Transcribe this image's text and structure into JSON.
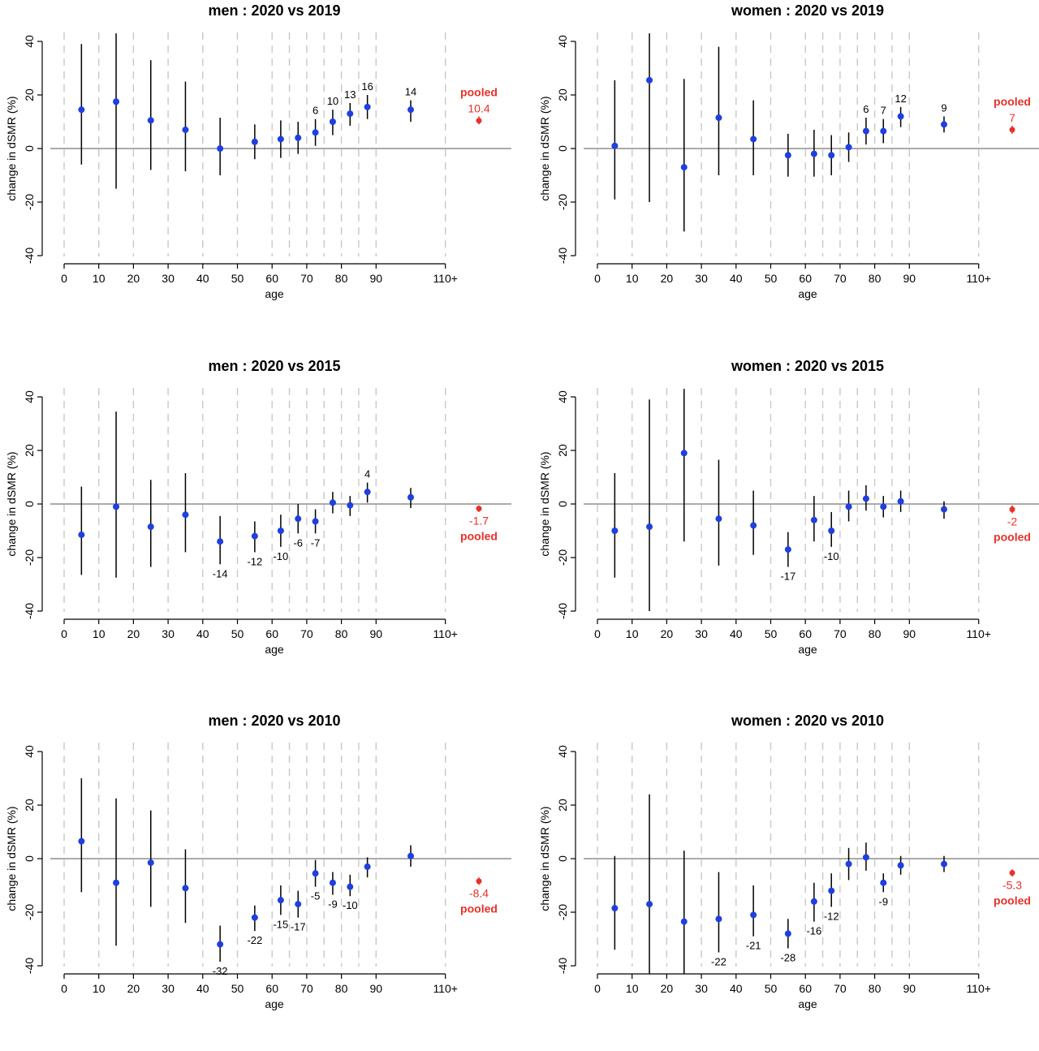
{
  "chart_data": [
    {
      "type": "scatter",
      "title": "men : 2020 vs 2019",
      "xlabel": "age",
      "ylabel": "change in dSMR (%)",
      "xlim": [
        0,
        110
      ],
      "ylim": [
        -40,
        40
      ],
      "x_tick_labels": [
        "0",
        "10",
        "20",
        "30",
        "40",
        "50",
        "60",
        "70",
        "80",
        "90",
        "110+"
      ],
      "y_tick_labels": [
        "-40",
        "-20",
        "0",
        "20",
        "40"
      ],
      "points": [
        {
          "x": 5,
          "y": 14.5,
          "lo": -6,
          "hi": 39,
          "label": ""
        },
        {
          "x": 15,
          "y": 17.5,
          "lo": -15,
          "hi": 43,
          "label": ""
        },
        {
          "x": 25,
          "y": 10.5,
          "lo": -8,
          "hi": 33,
          "label": ""
        },
        {
          "x": 35,
          "y": 7,
          "lo": -8.5,
          "hi": 25,
          "label": ""
        },
        {
          "x": 45,
          "y": 0,
          "lo": -10,
          "hi": 11.5,
          "label": ""
        },
        {
          "x": 55,
          "y": 2.5,
          "lo": -4,
          "hi": 9,
          "label": ""
        },
        {
          "x": 62.5,
          "y": 3.5,
          "lo": -3.5,
          "hi": 10.5,
          "label": ""
        },
        {
          "x": 67.5,
          "y": 4,
          "lo": -2,
          "hi": 10,
          "label": ""
        },
        {
          "x": 72.5,
          "y": 6,
          "lo": 1,
          "hi": 11,
          "label": "6"
        },
        {
          "x": 77.5,
          "y": 10,
          "lo": 5,
          "hi": 14.5,
          "label": "10"
        },
        {
          "x": 82.5,
          "y": 13,
          "lo": 8.5,
          "hi": 17,
          "label": "13"
        },
        {
          "x": 87.5,
          "y": 15.5,
          "lo": 11,
          "hi": 20,
          "label": "16"
        },
        {
          "x": 100,
          "y": 14.5,
          "lo": 10,
          "hi": 18,
          "label": "14"
        }
      ],
      "pooled": {
        "value": 10.4,
        "lo": 9,
        "hi": 12,
        "value_label": "10.4",
        "word": "pooled",
        "order": "word-first"
      }
    },
    {
      "type": "scatter",
      "title": "women : 2020 vs 2019",
      "xlabel": "age",
      "ylabel": "change in dSMR (%)",
      "xlim": [
        0,
        110
      ],
      "ylim": [
        -40,
        40
      ],
      "x_tick_labels": [
        "0",
        "10",
        "20",
        "30",
        "40",
        "50",
        "60",
        "70",
        "80",
        "90",
        "110+"
      ],
      "y_tick_labels": [
        "-40",
        "-20",
        "0",
        "20",
        "40"
      ],
      "points": [
        {
          "x": 5,
          "y": 1,
          "lo": -19,
          "hi": 25.5,
          "label": ""
        },
        {
          "x": 15,
          "y": 25.5,
          "lo": -20,
          "hi": 43,
          "label": ""
        },
        {
          "x": 25,
          "y": -7,
          "lo": -31,
          "hi": 26,
          "label": ""
        },
        {
          "x": 35,
          "y": 11.5,
          "lo": -10,
          "hi": 38,
          "label": ""
        },
        {
          "x": 45,
          "y": 3.5,
          "lo": -10,
          "hi": 18,
          "label": ""
        },
        {
          "x": 55,
          "y": -2.5,
          "lo": -10.5,
          "hi": 5.5,
          "label": ""
        },
        {
          "x": 62.5,
          "y": -2,
          "lo": -10.5,
          "hi": 7,
          "label": ""
        },
        {
          "x": 67.5,
          "y": -2.5,
          "lo": -10,
          "hi": 5,
          "label": ""
        },
        {
          "x": 72.5,
          "y": 0.5,
          "lo": -5,
          "hi": 6,
          "label": ""
        },
        {
          "x": 77.5,
          "y": 6.5,
          "lo": 1.5,
          "hi": 11.5,
          "label": "6"
        },
        {
          "x": 82.5,
          "y": 6.5,
          "lo": 2,
          "hi": 11,
          "label": "7"
        },
        {
          "x": 87.5,
          "y": 12,
          "lo": 8,
          "hi": 15.5,
          "label": "12"
        },
        {
          "x": 100,
          "y": 9,
          "lo": 6,
          "hi": 12,
          "label": "9"
        }
      ],
      "pooled": {
        "value": 7,
        "lo": 5.5,
        "hi": 8.5,
        "value_label": "7",
        "word": "pooled",
        "order": "word-first"
      }
    },
    {
      "type": "scatter",
      "title": "men : 2020 vs 2015",
      "xlabel": "age",
      "ylabel": "change in dSMR (%)",
      "xlim": [
        0,
        110
      ],
      "ylim": [
        -40,
        40
      ],
      "x_tick_labels": [
        "0",
        "10",
        "20",
        "30",
        "40",
        "50",
        "60",
        "70",
        "80",
        "90",
        "110+"
      ],
      "y_tick_labels": [
        "-40",
        "-20",
        "0",
        "20",
        "40"
      ],
      "points": [
        {
          "x": 5,
          "y": -11.5,
          "lo": -26.5,
          "hi": 6.5,
          "label": ""
        },
        {
          "x": 15,
          "y": -1,
          "lo": -27.5,
          "hi": 34.5,
          "label": ""
        },
        {
          "x": 25,
          "y": -8.5,
          "lo": -23.5,
          "hi": 9,
          "label": ""
        },
        {
          "x": 35,
          "y": -4,
          "lo": -18,
          "hi": 11.5,
          "label": ""
        },
        {
          "x": 45,
          "y": -14,
          "lo": -22.5,
          "hi": -4.5,
          "label": "-14"
        },
        {
          "x": 55,
          "y": -12,
          "lo": -18,
          "hi": -6.5,
          "label": "-12"
        },
        {
          "x": 62.5,
          "y": -10,
          "lo": -16,
          "hi": -4,
          "label": "-10"
        },
        {
          "x": 67.5,
          "y": -5.5,
          "lo": -11,
          "hi": 0,
          "label": "-6"
        },
        {
          "x": 72.5,
          "y": -6.5,
          "lo": -11,
          "hi": -2,
          "label": "-7"
        },
        {
          "x": 77.5,
          "y": 0.5,
          "lo": -3.5,
          "hi": 4.5,
          "label": ""
        },
        {
          "x": 82.5,
          "y": -0.5,
          "lo": -4.5,
          "hi": 3,
          "label": ""
        },
        {
          "x": 87.5,
          "y": 4.5,
          "lo": 0.5,
          "hi": 8,
          "label": "4"
        },
        {
          "x": 100,
          "y": 2.5,
          "lo": -1.5,
          "hi": 6,
          "label": ""
        }
      ],
      "pooled": {
        "value": -1.7,
        "lo": -3,
        "hi": -0.5,
        "value_label": "-1.7",
        "word": "pooled",
        "order": "value-first"
      }
    },
    {
      "type": "scatter",
      "title": "women : 2020 vs 2015",
      "xlabel": "age",
      "ylabel": "change in dSMR (%)",
      "xlim": [
        0,
        110
      ],
      "ylim": [
        -40,
        40
      ],
      "x_tick_labels": [
        "0",
        "10",
        "20",
        "30",
        "40",
        "50",
        "60",
        "70",
        "80",
        "90",
        "110+"
      ],
      "y_tick_labels": [
        "-40",
        "-20",
        "0",
        "20",
        "40"
      ],
      "points": [
        {
          "x": 5,
          "y": -10,
          "lo": -27.5,
          "hi": 11.5,
          "label": ""
        },
        {
          "x": 15,
          "y": -8.5,
          "lo": -40,
          "hi": 39,
          "label": ""
        },
        {
          "x": 25,
          "y": 19,
          "lo": -14,
          "hi": 43,
          "label": ""
        },
        {
          "x": 35,
          "y": -5.5,
          "lo": -23,
          "hi": 16.5,
          "label": ""
        },
        {
          "x": 45,
          "y": -8,
          "lo": -19,
          "hi": 5,
          "label": ""
        },
        {
          "x": 55,
          "y": -17,
          "lo": -23.5,
          "hi": -10.5,
          "label": "-17"
        },
        {
          "x": 62.5,
          "y": -6,
          "lo": -14,
          "hi": 3,
          "label": ""
        },
        {
          "x": 67.5,
          "y": -10,
          "lo": -16,
          "hi": -3,
          "label": "-10"
        },
        {
          "x": 72.5,
          "y": -1,
          "lo": -6.5,
          "hi": 5,
          "label": ""
        },
        {
          "x": 77.5,
          "y": 2,
          "lo": -2.5,
          "hi": 7,
          "label": ""
        },
        {
          "x": 82.5,
          "y": -1,
          "lo": -5,
          "hi": 3,
          "label": ""
        },
        {
          "x": 87.5,
          "y": 1,
          "lo": -3,
          "hi": 5,
          "label": ""
        },
        {
          "x": 100,
          "y": -2,
          "lo": -5.5,
          "hi": 1,
          "label": ""
        }
      ],
      "pooled": {
        "value": -2,
        "lo": -3.5,
        "hi": -0.5,
        "value_label": "-2",
        "word": "pooled",
        "order": "value-first"
      }
    },
    {
      "type": "scatter",
      "title": "men : 2020 vs 2010",
      "xlabel": "age",
      "ylabel": "change in dSMR (%)",
      "xlim": [
        0,
        110
      ],
      "ylim": [
        -40,
        40
      ],
      "x_tick_labels": [
        "0",
        "10",
        "20",
        "30",
        "40",
        "50",
        "60",
        "70",
        "80",
        "90",
        "110+"
      ],
      "y_tick_labels": [
        "-40",
        "-20",
        "0",
        "20",
        "40"
      ],
      "points": [
        {
          "x": 5,
          "y": 6.5,
          "lo": -12.5,
          "hi": 30,
          "label": ""
        },
        {
          "x": 15,
          "y": -9,
          "lo": -32.5,
          "hi": 22.5,
          "label": ""
        },
        {
          "x": 25,
          "y": -1.5,
          "lo": -18,
          "hi": 18,
          "label": ""
        },
        {
          "x": 35,
          "y": -11,
          "lo": -24,
          "hi": 3.5,
          "label": ""
        },
        {
          "x": 45,
          "y": -32,
          "lo": -38.5,
          "hi": -25,
          "label": "-32"
        },
        {
          "x": 55,
          "y": -22,
          "lo": -27,
          "hi": -17.5,
          "label": "-22"
        },
        {
          "x": 62.5,
          "y": -15.5,
          "lo": -21,
          "hi": -10,
          "label": "-15"
        },
        {
          "x": 67.5,
          "y": -17,
          "lo": -22,
          "hi": -12,
          "label": "-17"
        },
        {
          "x": 72.5,
          "y": -5.5,
          "lo": -10.5,
          "hi": -0.5,
          "label": "-5"
        },
        {
          "x": 77.5,
          "y": -9,
          "lo": -13.5,
          "hi": -5,
          "label": "-9"
        },
        {
          "x": 82.5,
          "y": -10.5,
          "lo": -14,
          "hi": -6,
          "label": "-10"
        },
        {
          "x": 87.5,
          "y": -3,
          "lo": -7,
          "hi": 0.5,
          "label": ""
        },
        {
          "x": 100,
          "y": 1,
          "lo": -3,
          "hi": 5,
          "label": ""
        }
      ],
      "pooled": {
        "value": -8.4,
        "lo": -9.8,
        "hi": -7,
        "value_label": "-8.4",
        "word": "pooled",
        "order": "value-first"
      }
    },
    {
      "type": "scatter",
      "title": "women : 2020 vs 2010",
      "xlabel": "age",
      "ylabel": "change in dSMR (%)",
      "xlim": [
        0,
        110
      ],
      "ylim": [
        -40,
        40
      ],
      "x_tick_labels": [
        "0",
        "10",
        "20",
        "30",
        "40",
        "50",
        "60",
        "70",
        "80",
        "90",
        "110+"
      ],
      "y_tick_labels": [
        "-40",
        "-20",
        "0",
        "20",
        "40"
      ],
      "points": [
        {
          "x": 5,
          "y": -18.5,
          "lo": -34,
          "hi": 1,
          "label": ""
        },
        {
          "x": 15,
          "y": -17,
          "lo": -43,
          "hi": 24,
          "label": ""
        },
        {
          "x": 25,
          "y": -23.5,
          "lo": -43,
          "hi": 3,
          "label": ""
        },
        {
          "x": 35,
          "y": -22.5,
          "lo": -35,
          "hi": -5,
          "label": "-22"
        },
        {
          "x": 45,
          "y": -21,
          "lo": -29,
          "hi": -10,
          "label": "-21"
        },
        {
          "x": 55,
          "y": -28,
          "lo": -33.5,
          "hi": -22.5,
          "label": "-28"
        },
        {
          "x": 62.5,
          "y": -16,
          "lo": -23.5,
          "hi": -9,
          "label": "-16"
        },
        {
          "x": 67.5,
          "y": -12,
          "lo": -18,
          "hi": -5.5,
          "label": "-12"
        },
        {
          "x": 72.5,
          "y": -2,
          "lo": -8,
          "hi": 4,
          "label": ""
        },
        {
          "x": 77.5,
          "y": 0.5,
          "lo": -4.5,
          "hi": 6,
          "label": ""
        },
        {
          "x": 82.5,
          "y": -9,
          "lo": -12.5,
          "hi": -5.5,
          "label": "-9"
        },
        {
          "x": 87.5,
          "y": -2.5,
          "lo": -6,
          "hi": 1,
          "label": ""
        },
        {
          "x": 100,
          "y": -2,
          "lo": -5,
          "hi": 1,
          "label": ""
        }
      ],
      "pooled": {
        "value": -5.3,
        "lo": -6.7,
        "hi": -4,
        "value_label": "-5.3",
        "word": "pooled",
        "order": "value-first"
      }
    }
  ],
  "colors": {
    "point": "#1f3fe0",
    "errorbar": "#000000",
    "pooled": "#e8312a",
    "gridline": "#c8c8c8",
    "zeroline": "#555555"
  }
}
